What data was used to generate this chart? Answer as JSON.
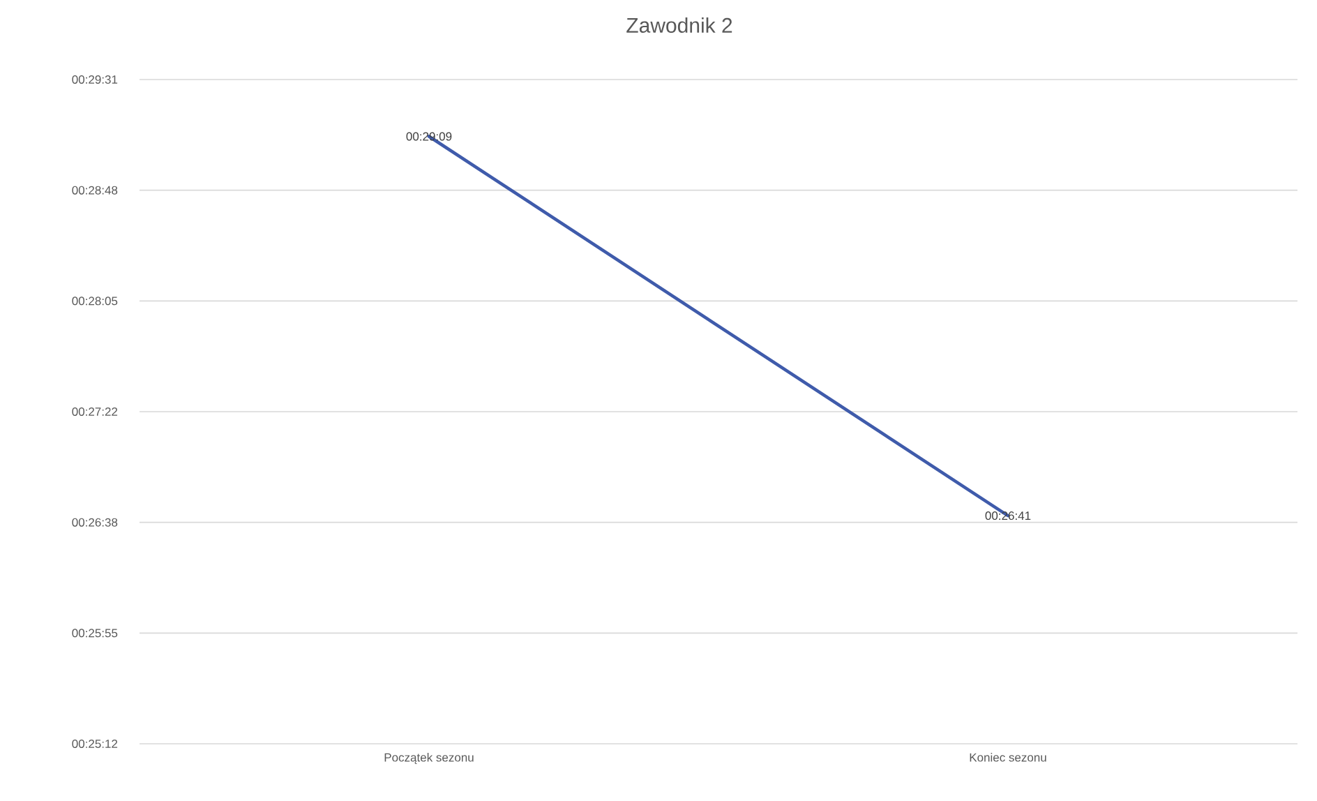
{
  "chart_data": {
    "type": "line",
    "title": "Zawodnik 2",
    "categories": [
      "Początek sezonu",
      "Koniec sezonu"
    ],
    "values": [
      1749,
      1601
    ],
    "color": "#3f5bab",
    "value_labels": [
      "00:29:09",
      "00:26:41"
    ],
    "ylim": [
      1512,
      1771.2
    ],
    "yticks": [
      {
        "value": 1512,
        "label": "00:25:12"
      },
      {
        "value": 1555.2,
        "label": "00:25:55"
      },
      {
        "value": 1598.4,
        "label": "00:26:38"
      },
      {
        "value": 1641.6,
        "label": "00:27:22"
      },
      {
        "value": 1684.8,
        "label": "00:28:05"
      },
      {
        "value": 1728,
        "label": "00:28:48"
      },
      {
        "value": 1771.2,
        "label": "00:29:31"
      }
    ],
    "grid": "y",
    "line_style": "solid"
  }
}
